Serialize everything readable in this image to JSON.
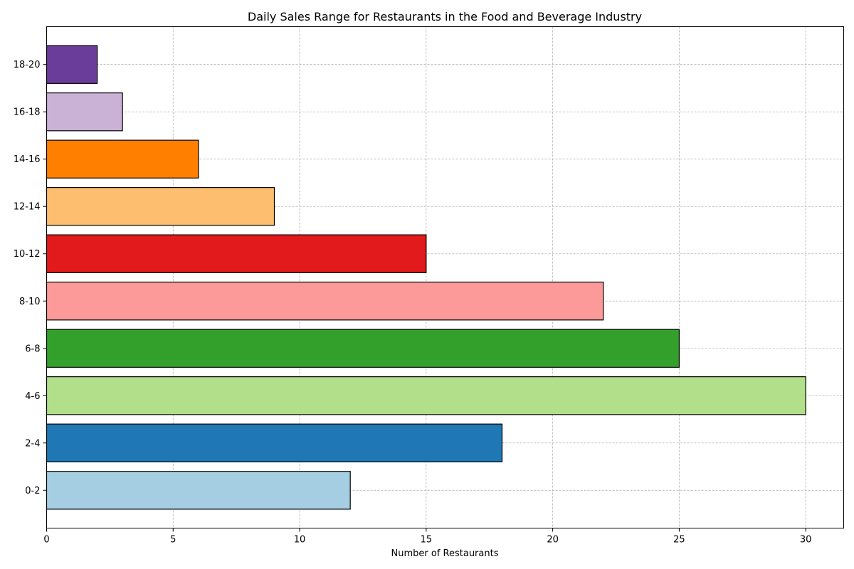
{
  "chart_data": {
    "type": "bar",
    "orientation": "horizontal",
    "title": "Daily Sales Range for Restaurants in the Food and Beverage Industry",
    "xlabel": "Number of Restaurants",
    "ylabel": "",
    "categories": [
      "0-2",
      "2-4",
      "4-6",
      "6-8",
      "8-10",
      "10-12",
      "12-14",
      "14-16",
      "16-18",
      "18-20"
    ],
    "values": [
      12,
      18,
      30,
      25,
      22,
      15,
      9,
      6,
      3,
      2
    ],
    "colors": [
      "#a6cee3",
      "#1f78b4",
      "#b2df8a",
      "#33a02c",
      "#fb9a99",
      "#e31a1c",
      "#fdbf6f",
      "#ff7f00",
      "#cab2d6",
      "#6a3d9a"
    ],
    "xlim": [
      0,
      31.5
    ],
    "xticks": [
      0,
      5,
      10,
      15,
      20,
      25,
      30
    ],
    "grid": true,
    "legend": "none"
  }
}
